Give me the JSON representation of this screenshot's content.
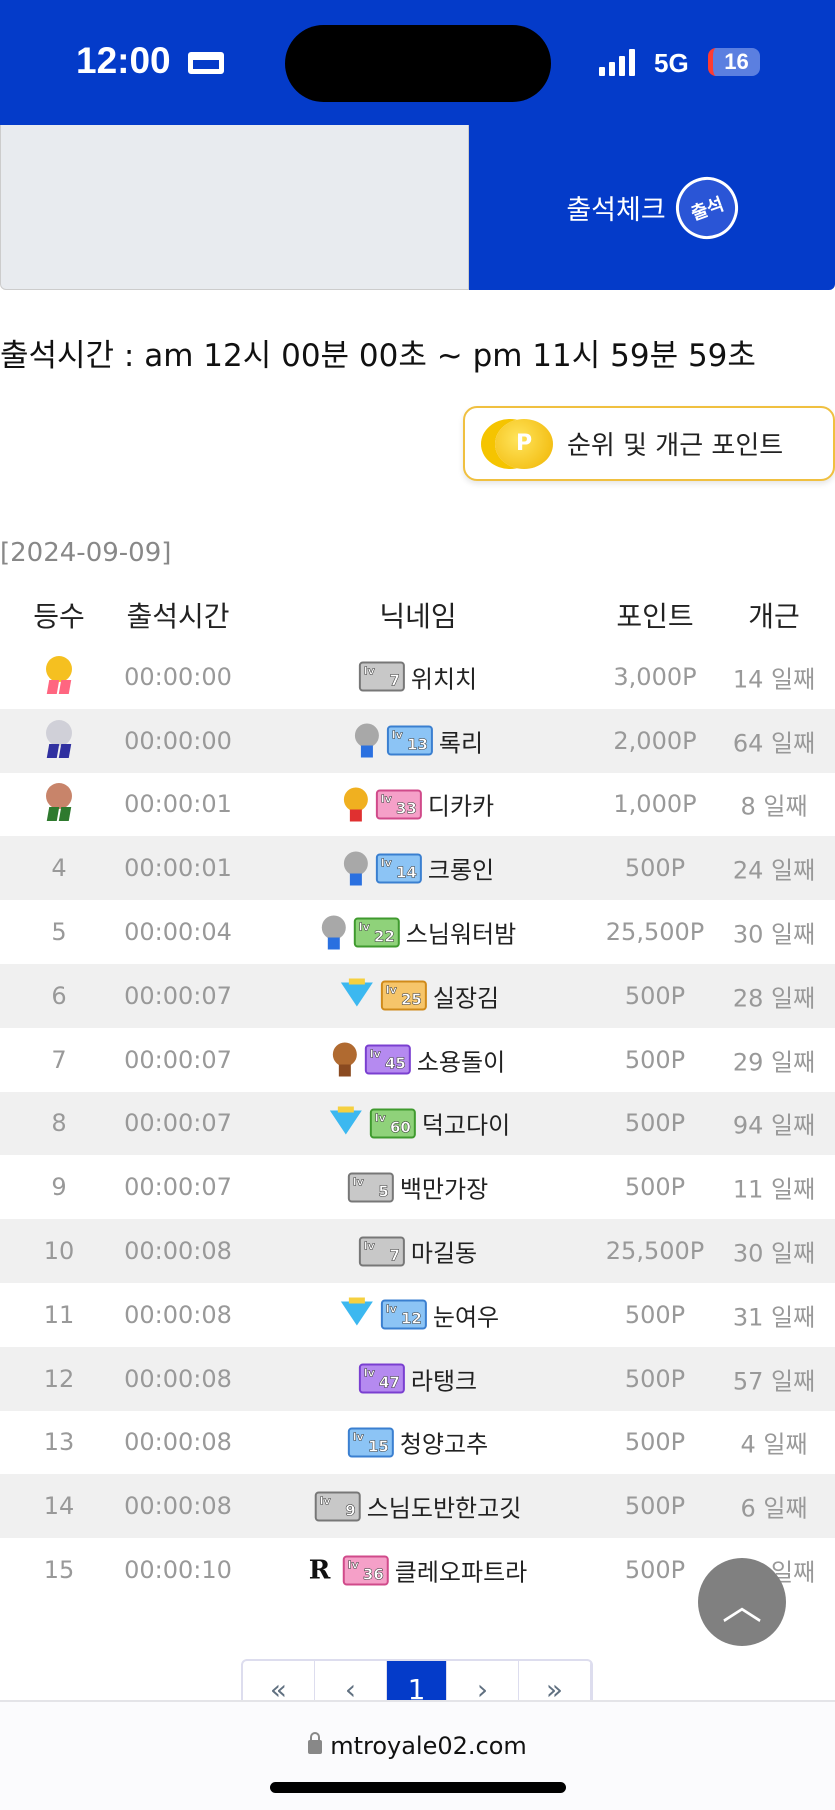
{
  "status_bar": {
    "time": "12:00",
    "network": "5G",
    "battery": "16"
  },
  "banner": {
    "checkin_label": "출석체크",
    "stamp_text": "출석"
  },
  "hours_text": "출석시간 : am 12시 00분 00초 ~ pm 11시 59분 59초",
  "points_button": {
    "label": "순위 및 개근 포인트",
    "coin": "P"
  },
  "date": "[2024-09-09]",
  "table": {
    "headers": [
      "등수",
      "출석시간",
      "닉네임",
      "포인트",
      "개근"
    ],
    "rows": [
      {
        "rank": "1",
        "medal": "gold",
        "time": "00:00:00",
        "tier": "",
        "level": "7",
        "level_color": "gray",
        "nickname": "위치치",
        "points": "3,000P",
        "days": "14 일째"
      },
      {
        "rank": "2",
        "medal": "silver",
        "time": "00:00:00",
        "tier": "silver-medal",
        "level": "13",
        "level_color": "blue",
        "nickname": "록리",
        "points": "2,000P",
        "days": "64 일째"
      },
      {
        "rank": "3",
        "medal": "bronze",
        "time": "00:00:01",
        "tier": "gold-medal",
        "level": "33",
        "level_color": "pink",
        "nickname": "디카카",
        "points": "1,000P",
        "days": "8 일째"
      },
      {
        "rank": "4",
        "medal": "",
        "time": "00:00:01",
        "tier": "silver-medal",
        "level": "14",
        "level_color": "blue",
        "nickname": "크롱인",
        "points": "500P",
        "days": "24 일째"
      },
      {
        "rank": "5",
        "medal": "",
        "time": "00:00:04",
        "tier": "silver-medal",
        "level": "22",
        "level_color": "green",
        "nickname": "스님워터밤",
        "points": "25,500P",
        "days": "30 일째"
      },
      {
        "rank": "6",
        "medal": "",
        "time": "00:00:07",
        "tier": "diamond",
        "level": "25",
        "level_color": "orange",
        "nickname": "실장김",
        "points": "500P",
        "days": "28 일째"
      },
      {
        "rank": "7",
        "medal": "",
        "time": "00:00:07",
        "tier": "bronze-medal",
        "level": "45",
        "level_color": "purple",
        "nickname": "소용돌이",
        "points": "500P",
        "days": "29 일째"
      },
      {
        "rank": "8",
        "medal": "",
        "time": "00:00:07",
        "tier": "diamond",
        "level": "60",
        "level_color": "green",
        "nickname": "덕고다이",
        "points": "500P",
        "days": "94 일째"
      },
      {
        "rank": "9",
        "medal": "",
        "time": "00:00:07",
        "tier": "",
        "level": "5",
        "level_color": "gray",
        "nickname": "백만가장",
        "points": "500P",
        "days": "11 일째"
      },
      {
        "rank": "10",
        "medal": "",
        "time": "00:00:08",
        "tier": "",
        "level": "7",
        "level_color": "gray",
        "nickname": "마길동",
        "points": "25,500P",
        "days": "30 일째"
      },
      {
        "rank": "11",
        "medal": "",
        "time": "00:00:08",
        "tier": "diamond",
        "level": "12",
        "level_color": "blue",
        "nickname": "눈여우",
        "points": "500P",
        "days": "31 일째"
      },
      {
        "rank": "12",
        "medal": "",
        "time": "00:00:08",
        "tier": "",
        "level": "47",
        "level_color": "purple",
        "nickname": "라탱크",
        "points": "500P",
        "days": "57 일째"
      },
      {
        "rank": "13",
        "medal": "",
        "time": "00:00:08",
        "tier": "",
        "level": "15",
        "level_color": "blue",
        "nickname": "청양고추",
        "points": "500P",
        "days": "4 일째"
      },
      {
        "rank": "14",
        "medal": "",
        "time": "00:00:08",
        "tier": "",
        "level": "9",
        "level_color": "gray",
        "nickname": "스님도반한고깃",
        "points": "500P",
        "days": "6 일째"
      },
      {
        "rank": "15",
        "medal": "",
        "time": "00:00:10",
        "tier": "royal-r",
        "level": "36",
        "level_color": "pink",
        "nickname": "클레오파트라",
        "points": "500P",
        "days": "92 일째"
      }
    ]
  },
  "pagination": {
    "first": "«",
    "prev": "‹",
    "current": "1",
    "next": "›",
    "last": "»"
  },
  "browser": {
    "url": "mtroyale02.com"
  },
  "colors": {
    "brand_blue": "#043bc9",
    "row_alt": "#f0f0f0",
    "points_border": "#f0c040"
  }
}
